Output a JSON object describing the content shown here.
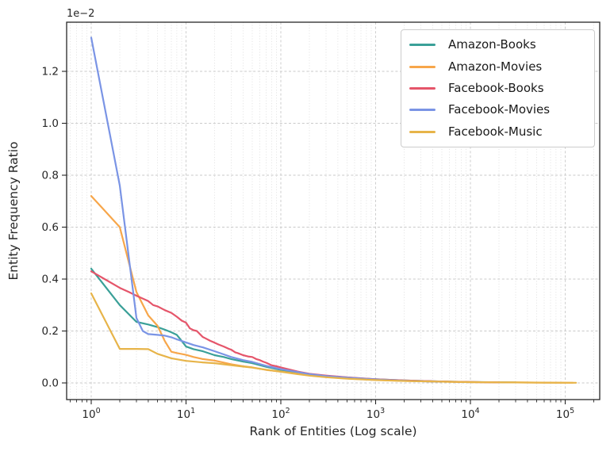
{
  "figure": {
    "background": "#ffffff",
    "spine_color": "#262626",
    "grid_major_color": "#c9c9c9",
    "grid_minor_color": "#dfdfdf"
  },
  "chart_data": {
    "type": "line",
    "title": "",
    "xlabel": "Rank of Entities (Log scale)",
    "ylabel": "Entity Frequency Ratio",
    "y_offset_label": "1e−2",
    "x_scale": "log",
    "xlim": [
      0.55,
      230000
    ],
    "ylim_e2": [
      -0.064,
      1.4
    ],
    "x_tick_exponents": [
      0,
      1,
      2,
      3,
      4,
      5
    ],
    "y_ticks_e2": [
      0.0,
      0.2,
      0.4,
      0.6,
      0.8,
      1.0,
      1.2
    ],
    "grid": "dashed major both axes, dotted log-minor vertical only",
    "legend_position": "upper right",
    "legend_entries": [
      "Amazon-Books",
      "Amazon-Movies",
      "Facebook-Books",
      "Facebook-Movies",
      "Facebook-Music"
    ],
    "series": [
      {
        "name": "Amazon-Books",
        "color": "#3aa098",
        "points_rank_value_e2": [
          [
            1,
            0.44
          ],
          [
            2,
            0.3
          ],
          [
            3,
            0.235
          ],
          [
            4,
            0.225
          ],
          [
            5,
            0.215
          ],
          [
            6,
            0.205
          ],
          [
            7,
            0.195
          ],
          [
            8,
            0.185
          ],
          [
            9,
            0.162
          ],
          [
            10,
            0.14
          ],
          [
            12,
            0.13
          ],
          [
            15,
            0.122
          ],
          [
            20,
            0.107
          ],
          [
            25,
            0.1
          ],
          [
            30,
            0.092
          ],
          [
            40,
            0.082
          ],
          [
            50,
            0.076
          ],
          [
            70,
            0.062
          ],
          [
            100,
            0.05
          ],
          [
            150,
            0.04
          ],
          [
            200,
            0.034
          ],
          [
            300,
            0.027
          ],
          [
            500,
            0.021
          ],
          [
            700,
            0.017
          ],
          [
            1000,
            0.014
          ],
          [
            2000,
            0.0095
          ],
          [
            3000,
            0.0075
          ],
          [
            5000,
            0.0055
          ],
          [
            10000,
            0.0038
          ],
          [
            20000,
            0.0025
          ],
          [
            30000,
            0.002
          ]
        ]
      },
      {
        "name": "Amazon-Movies",
        "color": "#f7a64a",
        "points_rank_value_e2": [
          [
            1,
            0.72
          ],
          [
            2,
            0.6
          ],
          [
            3,
            0.35
          ],
          [
            4,
            0.26
          ],
          [
            5,
            0.22
          ],
          [
            6,
            0.16
          ],
          [
            7,
            0.12
          ],
          [
            8,
            0.115
          ],
          [
            10,
            0.108
          ],
          [
            12,
            0.1
          ],
          [
            15,
            0.092
          ],
          [
            20,
            0.086
          ],
          [
            30,
            0.072
          ],
          [
            40,
            0.064
          ],
          [
            50,
            0.06
          ],
          [
            70,
            0.05
          ],
          [
            100,
            0.044
          ],
          [
            150,
            0.035
          ],
          [
            200,
            0.029
          ],
          [
            300,
            0.023
          ],
          [
            500,
            0.017
          ],
          [
            1000,
            0.0115
          ],
          [
            2000,
            0.008
          ],
          [
            5000,
            0.005
          ],
          [
            10000,
            0.0032
          ],
          [
            30000,
            0.0018
          ],
          [
            60000,
            0.0011
          ],
          [
            120000,
            0.0007
          ]
        ]
      },
      {
        "name": "Facebook-Books",
        "color": "#e5556a",
        "points_rank_value_e2": [
          [
            1,
            0.43
          ],
          [
            2,
            0.366
          ],
          [
            2.5,
            0.35
          ],
          [
            3,
            0.336
          ],
          [
            3.5,
            0.325
          ],
          [
            4,
            0.315
          ],
          [
            4.5,
            0.3
          ],
          [
            5,
            0.295
          ],
          [
            6,
            0.28
          ],
          [
            7,
            0.27
          ],
          [
            8,
            0.255
          ],
          [
            9,
            0.24
          ],
          [
            10,
            0.232
          ],
          [
            11,
            0.21
          ],
          [
            12,
            0.203
          ],
          [
            13,
            0.2
          ],
          [
            15,
            0.177
          ],
          [
            16,
            0.172
          ],
          [
            18,
            0.162
          ],
          [
            20,
            0.155
          ],
          [
            22,
            0.148
          ],
          [
            25,
            0.14
          ],
          [
            28,
            0.132
          ],
          [
            30,
            0.128
          ],
          [
            33,
            0.118
          ],
          [
            35,
            0.115
          ],
          [
            40,
            0.107
          ],
          [
            45,
            0.102
          ],
          [
            50,
            0.1
          ],
          [
            55,
            0.092
          ],
          [
            60,
            0.088
          ],
          [
            65,
            0.082
          ],
          [
            70,
            0.078
          ],
          [
            80,
            0.068
          ],
          [
            90,
            0.064
          ],
          [
            100,
            0.06
          ],
          [
            150,
            0.044
          ],
          [
            200,
            0.035
          ],
          [
            300,
            0.0285
          ],
          [
            500,
            0.0215
          ],
          [
            1000,
            0.0145
          ],
          [
            2000,
            0.0095
          ],
          [
            5000,
            0.0055
          ],
          [
            10000,
            0.0035
          ],
          [
            20000,
            0.002
          ]
        ]
      },
      {
        "name": "Facebook-Movies",
        "color": "#7a94e5",
        "points_rank_value_e2": [
          [
            1,
            1.33
          ],
          [
            2,
            0.76
          ],
          [
            3,
            0.25
          ],
          [
            3.5,
            0.2
          ],
          [
            4,
            0.188
          ],
          [
            5,
            0.185
          ],
          [
            6,
            0.182
          ],
          [
            7,
            0.176
          ],
          [
            8,
            0.168
          ],
          [
            10,
            0.156
          ],
          [
            12,
            0.146
          ],
          [
            15,
            0.137
          ],
          [
            20,
            0.122
          ],
          [
            25,
            0.11
          ],
          [
            30,
            0.1
          ],
          [
            40,
            0.088
          ],
          [
            50,
            0.081
          ],
          [
            70,
            0.066
          ],
          [
            100,
            0.053
          ],
          [
            150,
            0.042
          ],
          [
            200,
            0.034
          ],
          [
            300,
            0.0265
          ],
          [
            500,
            0.0205
          ],
          [
            1000,
            0.0135
          ],
          [
            2000,
            0.0085
          ],
          [
            3000,
            0.0065
          ],
          [
            5000,
            0.0045
          ]
        ]
      },
      {
        "name": "Facebook-Music",
        "color": "#e7b449",
        "points_rank_value_e2": [
          [
            1,
            0.345
          ],
          [
            2,
            0.131
          ],
          [
            3,
            0.131
          ],
          [
            4,
            0.13
          ],
          [
            5,
            0.112
          ],
          [
            7,
            0.095
          ],
          [
            10,
            0.085
          ],
          [
            15,
            0.079
          ],
          [
            20,
            0.076
          ],
          [
            30,
            0.068
          ],
          [
            40,
            0.063
          ],
          [
            50,
            0.059
          ],
          [
            70,
            0.051
          ],
          [
            100,
            0.043
          ],
          [
            150,
            0.034
          ],
          [
            200,
            0.028
          ],
          [
            300,
            0.022
          ],
          [
            500,
            0.0165
          ],
          [
            1000,
            0.011
          ],
          [
            2000,
            0.0075
          ],
          [
            5000,
            0.0048
          ],
          [
            10000,
            0.003
          ],
          [
            30000,
            0.0017
          ],
          [
            60000,
            0.001
          ],
          [
            130000,
            0.0006
          ]
        ]
      }
    ]
  }
}
